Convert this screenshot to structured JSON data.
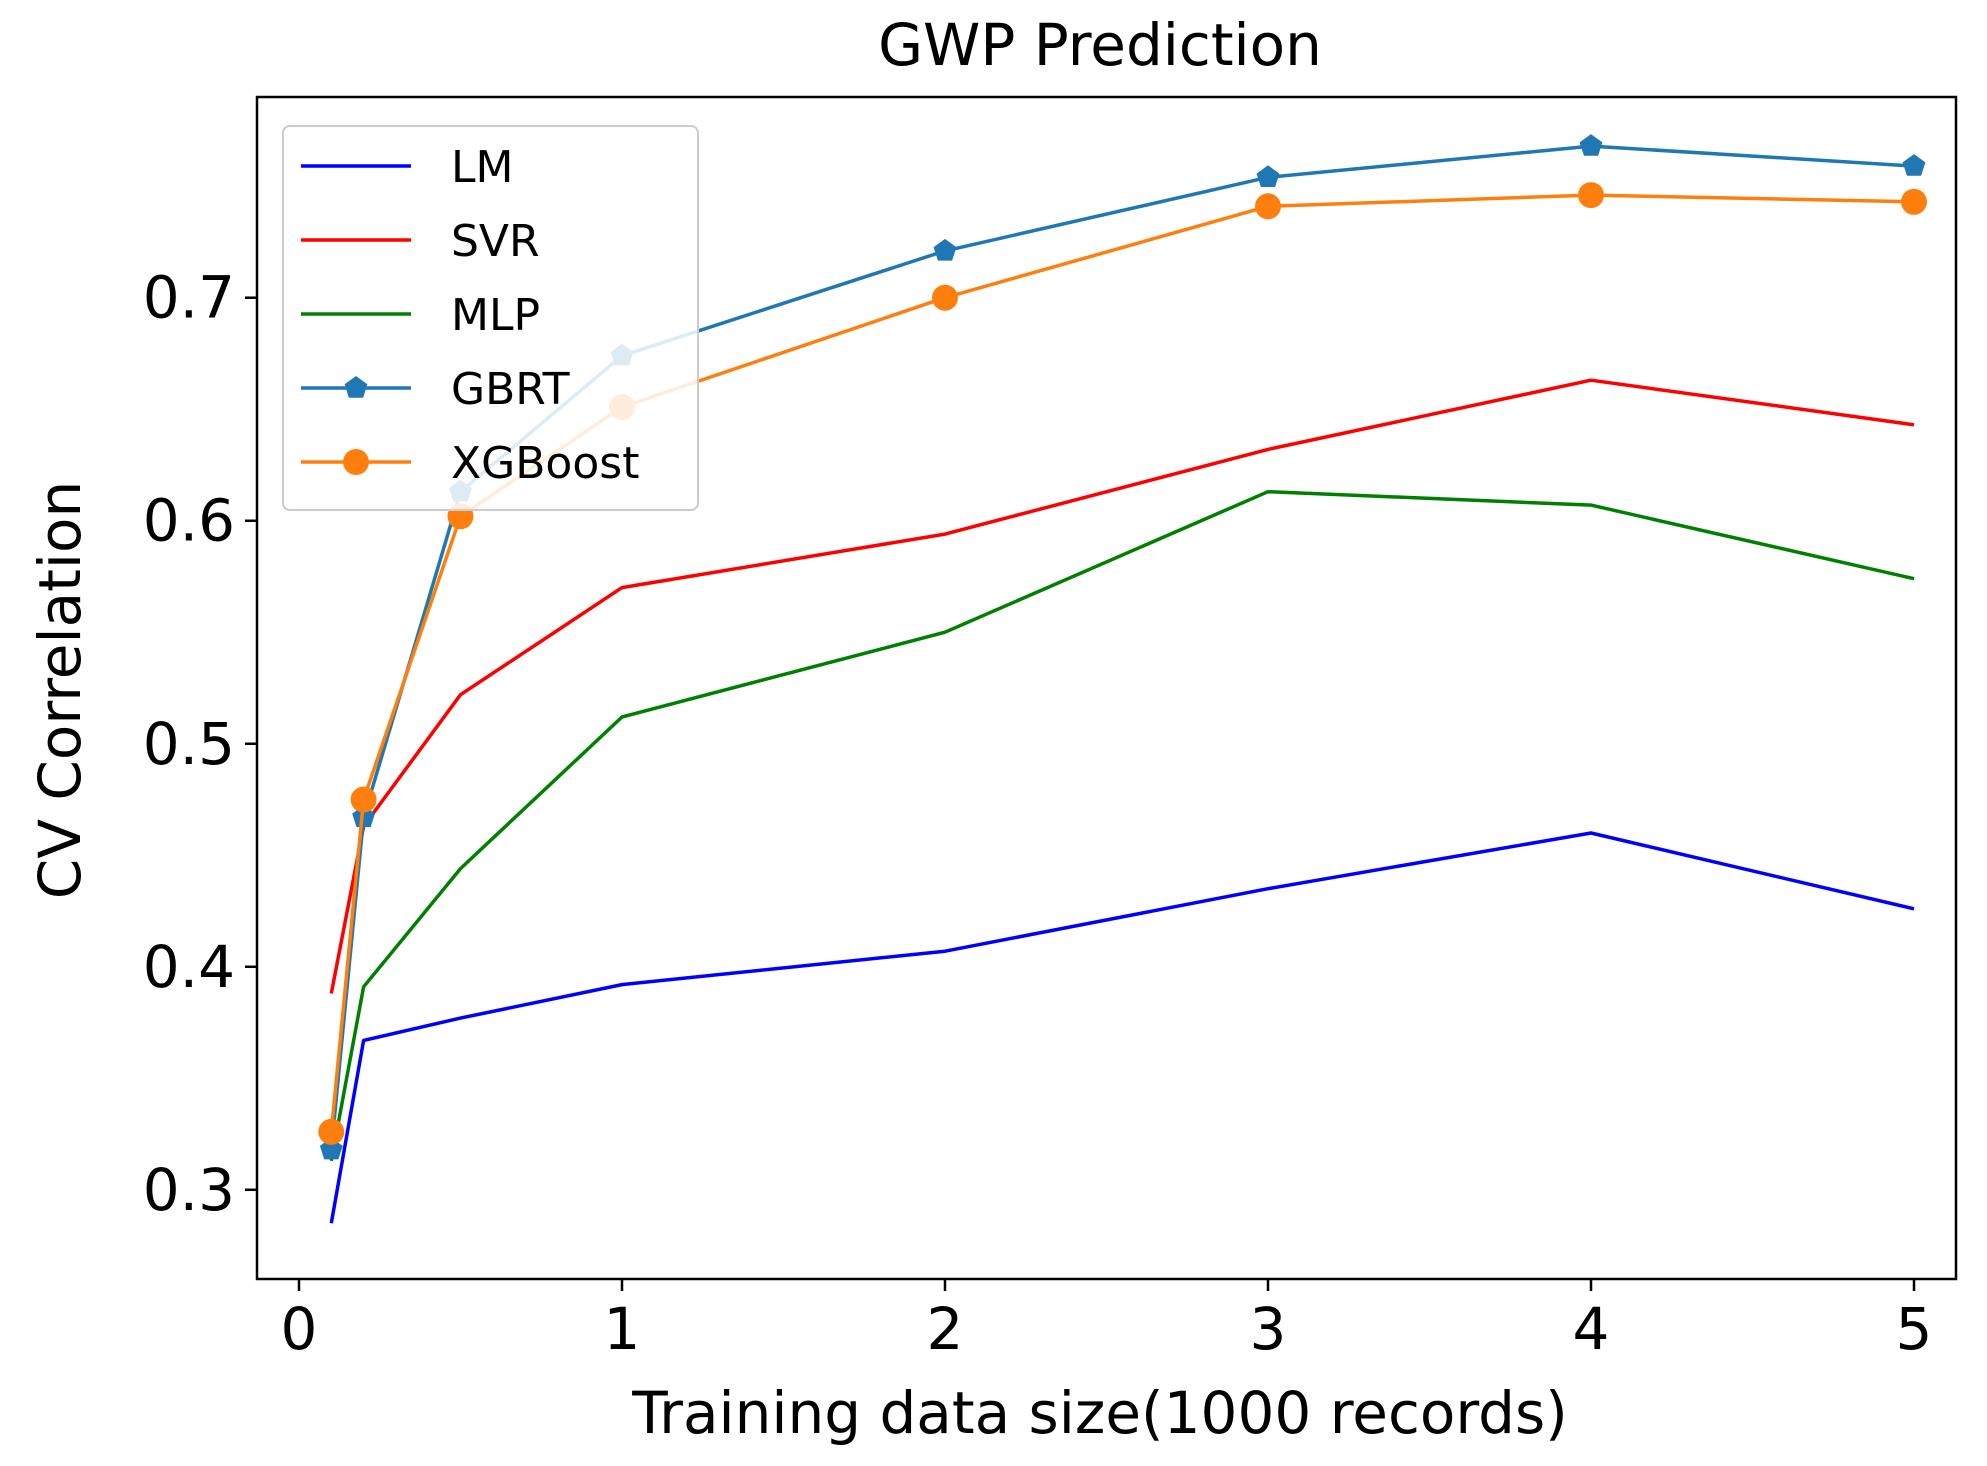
{
  "chart_data": {
    "type": "line",
    "title": "GWP Prediction",
    "xlabel": "Training data size(1000 records)",
    "ylabel": "CV Correlation",
    "xlim": [
      -0.13,
      5.13
    ],
    "ylim": [
      0.26,
      0.79
    ],
    "xticks": [
      0,
      1,
      2,
      3,
      4,
      5
    ],
    "xtick_labels": [
      "0",
      "1",
      "2",
      "3",
      "4",
      "5"
    ],
    "yticks": [
      0.3,
      0.4,
      0.5,
      0.6,
      0.7
    ],
    "ytick_labels": [
      "0.3",
      "0.4",
      "0.5",
      "0.6",
      "0.7"
    ],
    "grid": false,
    "legend_position": "top-left",
    "x": [
      0.1,
      0.2,
      0.5,
      1,
      2,
      3,
      4,
      5
    ],
    "series": [
      {
        "name": "LM",
        "color": "#0000ff",
        "marker": "none",
        "values": [
          0.285,
          0.367,
          0.377,
          0.392,
          0.407,
          0.435,
          0.46,
          0.426
        ]
      },
      {
        "name": "SVR",
        "color": "#ff0000",
        "marker": "none",
        "values": [
          0.388,
          0.463,
          0.522,
          0.57,
          0.594,
          0.632,
          0.663,
          0.643
        ]
      },
      {
        "name": "MLP",
        "color": "#008000",
        "marker": "none",
        "values": [
          0.313,
          0.391,
          0.444,
          0.512,
          0.55,
          0.613,
          0.607,
          0.574
        ]
      },
      {
        "name": "GBRT",
        "color": "#1f77b4",
        "marker": "pentagon",
        "values": [
          0.318,
          0.467,
          0.613,
          0.674,
          0.721,
          0.754,
          0.768,
          0.759
        ]
      },
      {
        "name": "XGBoost",
        "color": "#ff7f0e",
        "marker": "circle",
        "values": [
          0.326,
          0.475,
          0.602,
          0.651,
          0.7,
          0.741,
          0.746,
          0.743
        ]
      }
    ]
  }
}
